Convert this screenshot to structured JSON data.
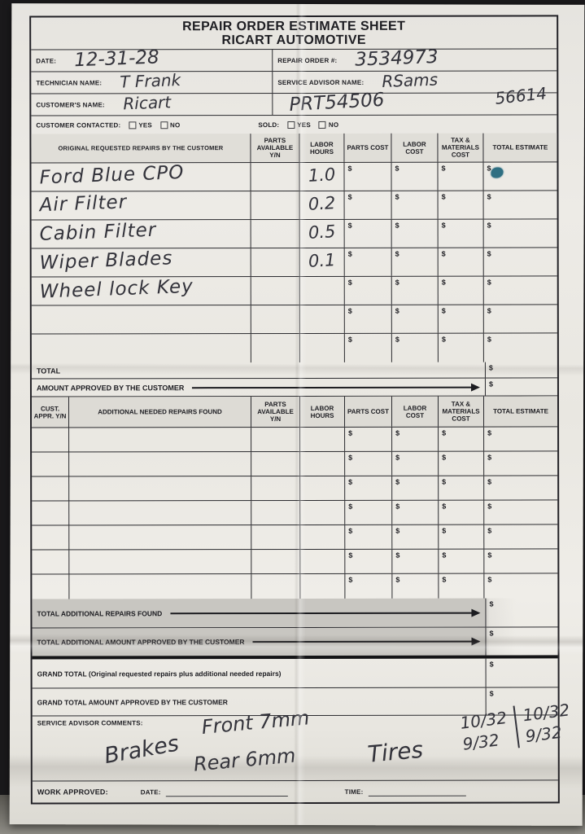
{
  "currency": "$",
  "header": {
    "title_line1": "REPAIR ORDER ESTIMATE SHEET",
    "title_line2": "RICART AUTOMOTIVE"
  },
  "fields": {
    "date_label": "DATE:",
    "date_value": "12-31-28",
    "repair_order_label": "REPAIR ORDER #:",
    "repair_order_value": "3534973",
    "technician_label": "TECHNICIAN NAME:",
    "technician_value": "T Frank",
    "advisor_label": "SERVICE ADVISOR NAME:",
    "advisor_value": "RSams",
    "customer_label": "CUSTOMER'S NAME:",
    "customer_value": "Ricart",
    "part_number_value": "PRT54506",
    "stock_number_value": "56614",
    "contacted_label": "CUSTOMER CONTACTED:",
    "sold_label": "SOLD:",
    "yes_label": "YES",
    "no_label": "NO"
  },
  "columns": {
    "parts_available": "PARTS AVAILABLE Y/N",
    "labor_hours": "LABOR HOURS",
    "parts_cost": "PARTS COST",
    "labor_cost": "LABOR COST",
    "tax_materials": "TAX & MATERIALS COST",
    "total_estimate": "TOTAL ESTIMATE"
  },
  "table1": {
    "header_desc": "ORIGINAL REQUESTED REPAIRS BY THE CUSTOMER",
    "rows": [
      {
        "desc": "Ford Blue CPO",
        "hours": "1.0"
      },
      {
        "desc": "Air Filter",
        "hours": "0.2"
      },
      {
        "desc": "Cabin Filter",
        "hours": "0.5"
      },
      {
        "desc": "Wiper Blades",
        "hours": "0.1"
      },
      {
        "desc": "Wheel lock Key",
        "hours": ""
      },
      {
        "desc": "",
        "hours": ""
      },
      {
        "desc": "",
        "hours": ""
      }
    ],
    "total_label": "TOTAL",
    "approved_label": "AMOUNT APPROVED BY THE CUSTOMER"
  },
  "table2": {
    "header_appr": "CUST. APPR. Y/N",
    "header_desc": "ADDITIONAL NEEDED REPAIRS FOUND",
    "row_count": 7,
    "total_additional_label": "TOTAL ADDITIONAL REPAIRS FOUND",
    "total_additional_approved_label": "TOTAL ADDITIONAL AMOUNT APPROVED BY THE CUSTOMER"
  },
  "summary": {
    "grand_total_label": "GRAND TOTAL (Original requested repairs plus additional needed repairs)",
    "grand_total_approved_label": "GRAND TOTAL AMOUNT APPROVED BY THE CUSTOMER"
  },
  "comments": {
    "label": "SERVICE ADVISOR COMMENTS:",
    "brakes": "Brakes",
    "front": "Front 7mm",
    "rear": "Rear 6mm",
    "tires": "Tires",
    "tire_front_left": "10/32",
    "tire_front_right": "10/32",
    "tire_rear_left": "9/32",
    "tire_rear_right": "9/32"
  },
  "footer": {
    "work_approved_label": "WORK APPROVED:",
    "date_label": "DATE:",
    "time_label": "TIME:"
  }
}
